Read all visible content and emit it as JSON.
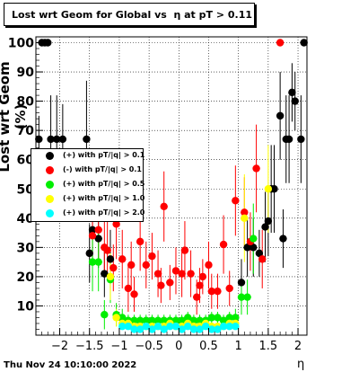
{
  "title": "Lost wrt Geom for Global vs  η at pT > 0.11",
  "date": "Thu Nov 24 10:10:00 2022",
  "chart_data": {
    "type": "scatter",
    "xlabel": "η",
    "ylabel": "Lost wrt Geom (%)",
    "xlim": [
      -2.4,
      2.15
    ],
    "ylim": [
      0,
      102
    ],
    "x_ticks": [
      -2,
      -1.5,
      -1,
      -0.5,
      0,
      0.5,
      1,
      1.5,
      2
    ],
    "x_tick_labels": [
      "−2",
      "−1.5",
      "−1",
      "−0.5",
      "0",
      "0.5",
      "1",
      "1.5",
      "2"
    ],
    "y_ticks": [
      10,
      20,
      30,
      40,
      50,
      60,
      70,
      80,
      90,
      100
    ],
    "grid": true,
    "legend_position": "left",
    "series": [
      {
        "name": "(+) with pT/|q| > 0.1",
        "color": "#000000",
        "points": [
          [
            -2.35,
            67,
            8
          ],
          [
            -2.3,
            100,
            0
          ],
          [
            -2.25,
            100,
            0
          ],
          [
            -2.2,
            100,
            0
          ],
          [
            -2.15,
            67,
            15
          ],
          [
            -2.05,
            67,
            15
          ],
          [
            -1.95,
            67,
            12
          ],
          [
            -1.55,
            67,
            20
          ],
          [
            -1.5,
            28,
            10
          ],
          [
            -1.45,
            36,
            12
          ],
          [
            -1.35,
            33,
            10
          ],
          [
            -1.25,
            21,
            8
          ],
          [
            -1.15,
            26,
            10
          ],
          [
            1.05,
            18,
            8
          ],
          [
            1.15,
            30,
            10
          ],
          [
            1.25,
            30,
            10
          ],
          [
            1.35,
            28,
            8
          ],
          [
            1.45,
            37,
            12
          ],
          [
            1.5,
            39,
            12
          ],
          [
            1.55,
            50,
            15
          ],
          [
            1.6,
            50,
            15
          ],
          [
            1.7,
            75,
            15
          ],
          [
            1.75,
            33,
            10
          ],
          [
            1.8,
            67,
            15
          ],
          [
            1.85,
            67,
            15
          ],
          [
            1.9,
            83,
            10
          ],
          [
            1.95,
            80,
            10
          ],
          [
            2.05,
            67,
            15
          ],
          [
            2.1,
            100,
            0
          ]
        ]
      },
      {
        "name": "(-) with pT/|q| > 0.1",
        "color": "#ff0000",
        "points": [
          [
            -1.45,
            34,
            10
          ],
          [
            -1.35,
            36,
            10
          ],
          [
            -1.25,
            30,
            10
          ],
          [
            -1.2,
            29,
            10
          ],
          [
            -1.1,
            23,
            8
          ],
          [
            -1.05,
            38,
            12
          ],
          [
            -0.95,
            26,
            10
          ],
          [
            -0.85,
            16,
            8
          ],
          [
            -0.8,
            24,
            8
          ],
          [
            -0.75,
            14,
            6
          ],
          [
            -0.65,
            32,
            10
          ],
          [
            -0.55,
            24,
            8
          ],
          [
            -0.45,
            27,
            8
          ],
          [
            -0.35,
            21,
            8
          ],
          [
            -0.3,
            17,
            6
          ],
          [
            -0.25,
            44,
            12
          ],
          [
            -0.15,
            18,
            6
          ],
          [
            -0.05,
            22,
            8
          ],
          [
            0.05,
            21,
            8
          ],
          [
            0.1,
            29,
            10
          ],
          [
            0.2,
            21,
            8
          ],
          [
            0.3,
            13,
            6
          ],
          [
            0.35,
            17,
            6
          ],
          [
            0.4,
            20,
            6
          ],
          [
            0.5,
            24,
            8
          ],
          [
            0.55,
            15,
            6
          ],
          [
            0.65,
            15,
            6
          ],
          [
            0.75,
            31,
            10
          ],
          [
            0.85,
            16,
            6
          ],
          [
            0.95,
            46,
            12
          ],
          [
            1.1,
            42,
            12
          ],
          [
            1.2,
            32,
            10
          ],
          [
            1.3,
            57,
            15
          ],
          [
            1.4,
            26,
            10
          ],
          [
            1.7,
            100,
            0
          ]
        ]
      },
      {
        "name": "(+) with pT/|q| > 0.5",
        "color": "#00ee00",
        "points": [
          [
            -1.45,
            25,
            10
          ],
          [
            -1.35,
            25,
            10
          ],
          [
            -1.25,
            7,
            5
          ],
          [
            -1.15,
            19,
            8
          ],
          [
            -1.05,
            7,
            4
          ],
          [
            -0.95,
            6,
            3
          ],
          [
            -0.85,
            5,
            2
          ],
          [
            -0.75,
            5,
            2
          ],
          [
            -0.65,
            5,
            2
          ],
          [
            -0.55,
            5,
            2
          ],
          [
            -0.45,
            5,
            2
          ],
          [
            -0.35,
            5,
            2
          ],
          [
            -0.25,
            5,
            2
          ],
          [
            -0.15,
            5,
            2
          ],
          [
            -0.05,
            5,
            2
          ],
          [
            0.05,
            5,
            2
          ],
          [
            0.15,
            6,
            2
          ],
          [
            0.25,
            5,
            2
          ],
          [
            0.35,
            5,
            2
          ],
          [
            0.45,
            5,
            2
          ],
          [
            0.55,
            6,
            2
          ],
          [
            0.65,
            6,
            2
          ],
          [
            0.75,
            5,
            2
          ],
          [
            0.85,
            6,
            2
          ],
          [
            0.95,
            6,
            3
          ],
          [
            1.05,
            13,
            6
          ],
          [
            1.15,
            13,
            6
          ],
          [
            1.25,
            33,
            12
          ]
        ]
      },
      {
        "name": "(+) with pT/|q| > 1.0",
        "color": "#ffff00",
        "points": [
          [
            -1.15,
            20,
            8
          ],
          [
            -1.05,
            6,
            3
          ],
          [
            -0.95,
            4,
            2
          ],
          [
            -0.85,
            4,
            2
          ],
          [
            -0.75,
            3,
            1
          ],
          [
            -0.65,
            3,
            1
          ],
          [
            -0.55,
            3,
            1
          ],
          [
            -0.45,
            3,
            1
          ],
          [
            -0.35,
            3,
            1
          ],
          [
            -0.25,
            3,
            1
          ],
          [
            -0.15,
            4,
            1
          ],
          [
            -0.05,
            3,
            1
          ],
          [
            0.05,
            3,
            1
          ],
          [
            0.15,
            4,
            1
          ],
          [
            0.25,
            3,
            1
          ],
          [
            0.35,
            3,
            1
          ],
          [
            0.45,
            4,
            1
          ],
          [
            0.55,
            3,
            1
          ],
          [
            0.65,
            3,
            1
          ],
          [
            0.75,
            3,
            1
          ],
          [
            0.85,
            4,
            1
          ],
          [
            0.95,
            4,
            2
          ],
          [
            1.1,
            40,
            15
          ],
          [
            1.5,
            50,
            15
          ]
        ]
      },
      {
        "name": "(+) with pT/|q| > 2.0",
        "color": "#00ffff",
        "points": [
          [
            -0.95,
            3,
            1
          ],
          [
            -0.85,
            3,
            1
          ],
          [
            -0.75,
            2,
            1
          ],
          [
            -0.65,
            2,
            1
          ],
          [
            -0.55,
            3,
            1
          ],
          [
            -0.45,
            2,
            1
          ],
          [
            -0.35,
            3,
            1
          ],
          [
            -0.25,
            2,
            1
          ],
          [
            -0.15,
            3,
            1
          ],
          [
            -0.05,
            3,
            1
          ],
          [
            0.05,
            2,
            1
          ],
          [
            0.15,
            3,
            1
          ],
          [
            0.25,
            2,
            1
          ],
          [
            0.35,
            2,
            1
          ],
          [
            0.45,
            3,
            1
          ],
          [
            0.55,
            2,
            1
          ],
          [
            0.65,
            2,
            1
          ],
          [
            0.75,
            3,
            1
          ],
          [
            0.85,
            3,
            1
          ],
          [
            0.95,
            3,
            1
          ]
        ]
      }
    ]
  }
}
